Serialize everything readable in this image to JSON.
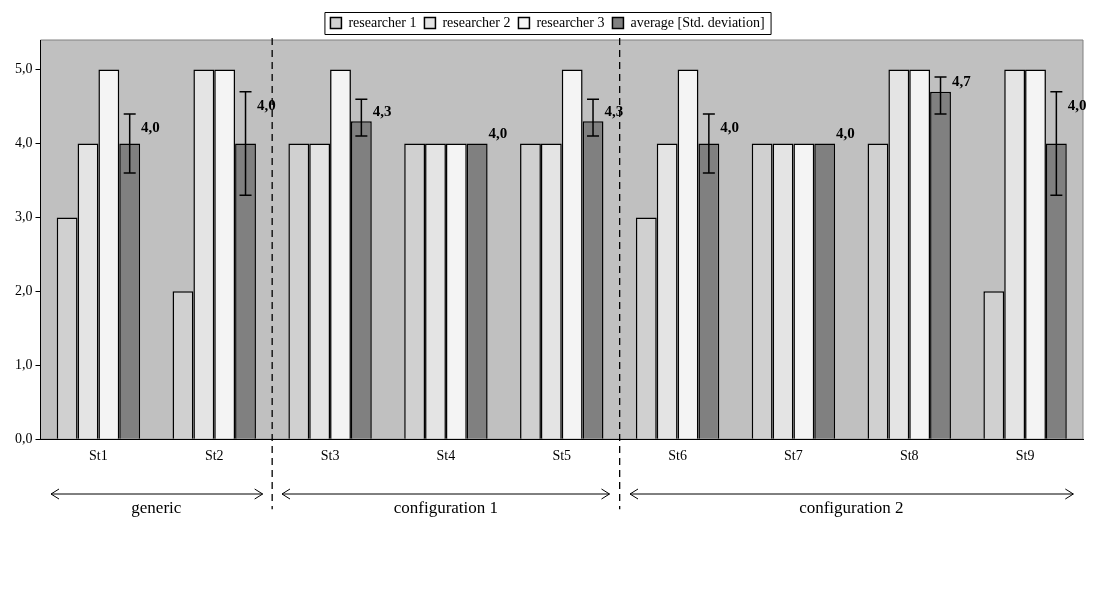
{
  "chart_data": {
    "type": "bar",
    "categories": [
      "St1",
      "St2",
      "St3",
      "St4",
      "St5",
      "St6",
      "St7",
      "St8",
      "St9"
    ],
    "series": [
      {
        "name": "researcher 1",
        "color": "#d0d0d0",
        "values": [
          3,
          2,
          4,
          4,
          4,
          3,
          4,
          4,
          2
        ]
      },
      {
        "name": "researcher 2",
        "color": "#e4e4e4",
        "values": [
          4,
          5,
          4,
          4,
          4,
          4,
          4,
          5,
          5
        ]
      },
      {
        "name": "researcher 3",
        "color": "#f4f4f4",
        "values": [
          5,
          5,
          5,
          4,
          5,
          5,
          4,
          5,
          5
        ]
      },
      {
        "name": "average [Std. deviation]",
        "color": "#808080",
        "values": [
          4.0,
          4.0,
          4.3,
          4.0,
          4.3,
          4.0,
          4.0,
          4.7,
          4.0
        ],
        "errors": [
          [
            3.6,
            4.4
          ],
          [
            3.3,
            4.7
          ],
          [
            4.1,
            4.6
          ],
          null,
          [
            4.1,
            4.6
          ],
          [
            3.6,
            4.4
          ],
          null,
          [
            4.4,
            4.9
          ],
          [
            3.3,
            4.7
          ]
        ],
        "value_labels": [
          "4,0",
          "4,0",
          "4,3",
          "4,0",
          "4,3",
          "4,0",
          "4,0",
          "4,7",
          "4,0"
        ]
      }
    ],
    "ylim": [
      0,
      5.4
    ],
    "yticks": [
      {
        "value": 0,
        "label": "0,0"
      },
      {
        "value": 1,
        "label": "1,0"
      },
      {
        "value": 2,
        "label": "2,0"
      },
      {
        "value": 3,
        "label": "3,0"
      },
      {
        "value": 4,
        "label": "4,0"
      },
      {
        "value": 5,
        "label": "5,0"
      }
    ],
    "annotations": [
      "generic",
      "configuration 1",
      "configuration 2"
    ],
    "legend": "top",
    "grid": false
  }
}
